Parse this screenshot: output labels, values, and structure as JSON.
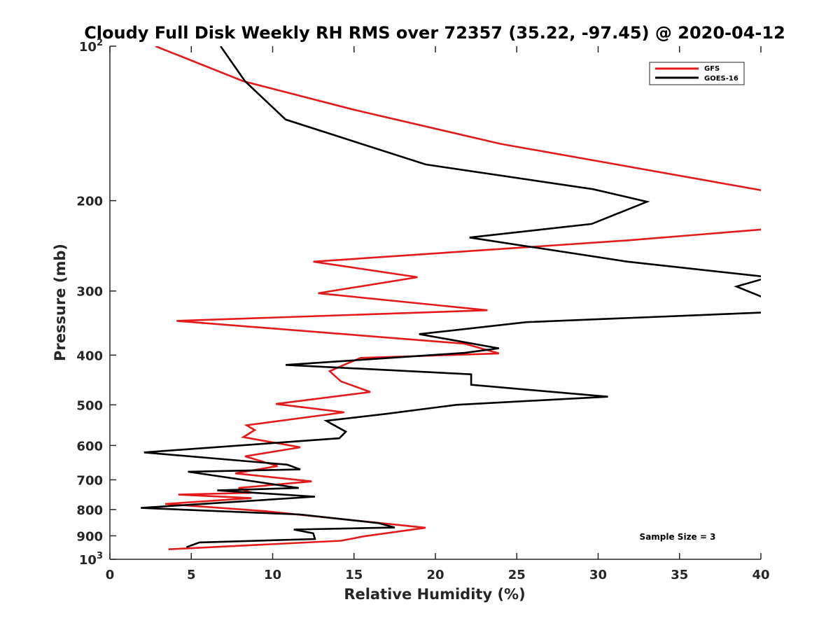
{
  "chart_data": {
    "type": "line",
    "title": "Cloudy Full Disk Weekly RH RMS over 72357 (35.22, -97.45) @ 2020-04-12",
    "xlabel": "Relative Humidity (%)",
    "ylabel": "Pressure (mb)",
    "xlim": [
      0,
      40
    ],
    "ylim": [
      100,
      1000
    ],
    "y_scale": "log",
    "y_reversed": true,
    "x_ticks": [
      "0",
      "5",
      "10",
      "15",
      "20",
      "25",
      "30",
      "35",
      "40"
    ],
    "y_ticks": [
      {
        "value": 100,
        "base": "10",
        "exp": "2"
      },
      {
        "value": 200,
        "label": "200"
      },
      {
        "value": 300,
        "label": "300"
      },
      {
        "value": 400,
        "label": "400"
      },
      {
        "value": 500,
        "label": "500"
      },
      {
        "value": 600,
        "label": "600"
      },
      {
        "value": 700,
        "label": "700"
      },
      {
        "value": 800,
        "label": "800"
      },
      {
        "value": 900,
        "label": "900"
      },
      {
        "value": 1000,
        "base": "10",
        "exp": "3"
      }
    ],
    "legend_position": "top-right",
    "annotation": "Sample Size = 3",
    "grid": false,
    "series": [
      {
        "name": "GFS",
        "color": "#e31a1c",
        "points": [
          [
            2.8,
            100
          ],
          [
            8.2,
            117
          ],
          [
            15.0,
            133
          ],
          [
            24.0,
            155
          ],
          [
            40.5,
            192
          ],
          [
            40.5,
            227
          ],
          [
            31.8,
            239
          ],
          [
            12.5,
            263
          ],
          [
            18.9,
            282
          ],
          [
            12.8,
            303
          ],
          [
            23.2,
            327
          ],
          [
            4.1,
            343
          ],
          [
            21.8,
            380
          ],
          [
            23.9,
            397
          ],
          [
            15.4,
            405
          ],
          [
            14.3,
            419
          ],
          [
            13.5,
            430
          ],
          [
            14.2,
            450
          ],
          [
            16.0,
            472
          ],
          [
            10.2,
            498
          ],
          [
            14.4,
            517
          ],
          [
            8.4,
            548
          ],
          [
            8.9,
            560
          ],
          [
            8.2,
            578
          ],
          [
            11.7,
            605
          ],
          [
            8.3,
            630
          ],
          [
            10.3,
            658
          ],
          [
            7.7,
            680
          ],
          [
            12.4,
            705
          ],
          [
            7.9,
            726
          ],
          [
            8.7,
            742
          ],
          [
            4.2,
            748
          ],
          [
            8.7,
            760
          ],
          [
            3.4,
            780
          ],
          [
            9.6,
            806
          ],
          [
            19.4,
            868
          ],
          [
            15.6,
            902
          ],
          [
            14.2,
            920
          ],
          [
            3.6,
            956
          ]
        ]
      },
      {
        "name": "GOES-16",
        "color": "#000000",
        "points": [
          [
            6.8,
            100
          ],
          [
            8.3,
            117
          ],
          [
            10.8,
            139
          ],
          [
            19.4,
            170
          ],
          [
            29.7,
            190
          ],
          [
            33.0,
            201
          ],
          [
            29.6,
            222
          ],
          [
            22.1,
            236
          ],
          [
            31.8,
            263
          ],
          [
            40.5,
            282
          ],
          [
            38.5,
            294
          ],
          [
            40.5,
            312
          ],
          [
            40.5,
            330
          ],
          [
            25.6,
            345
          ],
          [
            19.0,
            364
          ],
          [
            23.9,
            388
          ],
          [
            21.8,
            396
          ],
          [
            10.8,
            418
          ],
          [
            22.2,
            436
          ],
          [
            22.2,
            457
          ],
          [
            30.6,
            482
          ],
          [
            21.3,
            500
          ],
          [
            16.9,
            521
          ],
          [
            13.3,
            537
          ],
          [
            13.6,
            544
          ],
          [
            14.5,
            564
          ],
          [
            14.1,
            581
          ],
          [
            2.1,
            619
          ],
          [
            10.9,
            654
          ],
          [
            11.7,
            668
          ],
          [
            4.8,
            675
          ],
          [
            11.6,
            726
          ],
          [
            6.6,
            734
          ],
          [
            12.6,
            755
          ],
          [
            1.9,
            794
          ],
          [
            11.7,
            818
          ],
          [
            16.5,
            850
          ],
          [
            17.5,
            867
          ],
          [
            11.3,
            875
          ],
          [
            12.5,
            890
          ],
          [
            12.6,
            913
          ],
          [
            5.5,
            927
          ],
          [
            4.7,
            947
          ]
        ]
      }
    ]
  }
}
